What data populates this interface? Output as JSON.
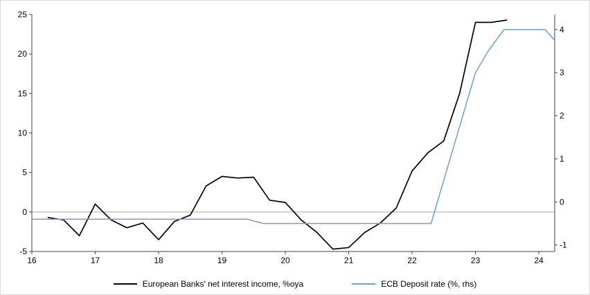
{
  "chart_data": {
    "type": "line",
    "title": "",
    "x_domain": [
      16,
      24.25
    ],
    "x_ticks": [
      16,
      17,
      18,
      19,
      20,
      21,
      22,
      23,
      24
    ],
    "left_axis": {
      "range": [
        -5,
        25
      ],
      "ticks": [
        -5,
        0,
        5,
        10,
        15,
        20,
        25
      ]
    },
    "right_axis": {
      "range": [
        -1.15,
        4.35
      ],
      "ticks": [
        -1,
        0,
        1,
        2,
        3,
        4
      ]
    },
    "zero_line_value": 0,
    "colors": {
      "axis": "#404040",
      "zero_line": "#a6a6a6"
    },
    "series": [
      {
        "name": "European Banks' net interest income, %oya",
        "axis": "left",
        "color": "#000000",
        "x": [
          16.25,
          16.5,
          16.75,
          17.0,
          17.25,
          17.5,
          17.75,
          18.0,
          18.25,
          18.5,
          18.75,
          19.0,
          19.25,
          19.5,
          19.75,
          20.0,
          20.25,
          20.5,
          20.75,
          21.0,
          21.25,
          21.5,
          21.75,
          22.0,
          22.25,
          22.5,
          22.75,
          23.0,
          23.25,
          23.5
        ],
        "values": [
          -0.7,
          -1.0,
          -3.0,
          1.0,
          -1.0,
          -2.0,
          -1.4,
          -3.5,
          -1.2,
          -0.4,
          3.3,
          4.5,
          4.3,
          4.4,
          1.5,
          1.2,
          -1.0,
          -2.6,
          -4.7,
          -4.5,
          -2.6,
          -1.4,
          0.5,
          5.2,
          7.5,
          9.0,
          15.0,
          24.0,
          24.0,
          24.3
        ]
      },
      {
        "name": "ECB Deposit rate (%, rhs)",
        "axis": "right",
        "color": "#6f9fd4",
        "x": [
          16.0,
          19.4,
          19.65,
          22.3,
          22.5,
          22.75,
          23.0,
          23.2,
          23.45,
          24.1,
          24.25
        ],
        "values": [
          -0.4,
          -0.4,
          -0.5,
          -0.5,
          0.5,
          1.75,
          3.0,
          3.5,
          4.0,
          4.0,
          3.75
        ]
      }
    ]
  }
}
